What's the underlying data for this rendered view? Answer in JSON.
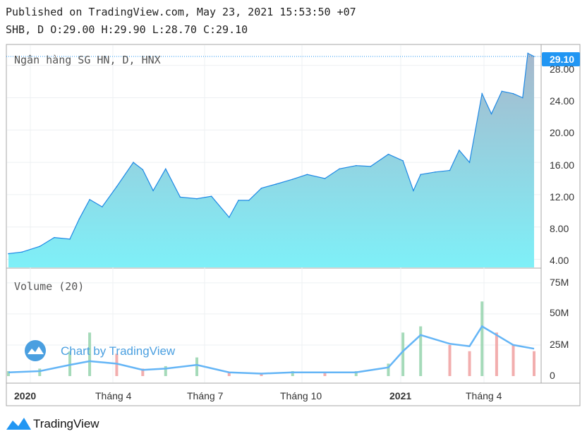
{
  "header": {
    "published": "Published on TradingView.com, May 23, 2021 15:53:50 +07",
    "ohlc": "SHB, D O:29.00 H:29.90 L:28.70 C:29.10"
  },
  "price_pane": {
    "label": "Ngân hàng SG HN, D, HNX",
    "last_price_label": "29.10",
    "y_ticks": [
      "28.00",
      "24.00",
      "20.00",
      "16.00",
      "12.00",
      "8.00",
      "4.00"
    ]
  },
  "volume_pane": {
    "label": "Volume (20)",
    "y_ticks": [
      "75M",
      "50M",
      "25M",
      "0"
    ]
  },
  "x_axis": {
    "ticks": [
      {
        "label": "2020",
        "bold": true
      },
      {
        "label": "Tháng 4",
        "bold": false
      },
      {
        "label": "Tháng 7",
        "bold": false
      },
      {
        "label": "Tháng 10",
        "bold": false
      },
      {
        "label": "2021",
        "bold": true
      },
      {
        "label": "Tháng 4",
        "bold": false
      }
    ]
  },
  "watermark": "Chart by TradingView",
  "footer_brand": "TradingView",
  "colors": {
    "area_top": "#a7b8cc",
    "area_bottom": "#7ef0f8",
    "line": "#1e88e5",
    "price_label_bg": "#2196f3",
    "vol_up": "#8fd1a8",
    "vol_down": "#ef9a9a",
    "vol_ma": "#64b5f6",
    "grid": "#eef0f3",
    "border": "#a7a7a7"
  },
  "chart_data": [
    {
      "type": "area",
      "title": "Ngân hàng SG HN, D, HNX",
      "x": [
        "2020-01-02",
        "2020-01-15",
        "2020-02-01",
        "2020-02-15",
        "2020-03-01",
        "2020-03-10",
        "2020-03-20",
        "2020-04-01",
        "2020-04-15",
        "2020-05-01",
        "2020-05-10",
        "2020-05-20",
        "2020-06-01",
        "2020-06-15",
        "2020-07-01",
        "2020-07-15",
        "2020-08-01",
        "2020-08-10",
        "2020-08-20",
        "2020-09-01",
        "2020-09-15",
        "2020-10-01",
        "2020-10-15",
        "2020-11-01",
        "2020-11-15",
        "2020-12-01",
        "2020-12-15",
        "2021-01-01",
        "2021-01-15",
        "2021-01-25",
        "2021-02-01",
        "2021-02-15",
        "2021-03-01",
        "2021-03-10",
        "2021-03-20",
        "2021-04-01",
        "2021-04-10",
        "2021-04-20",
        "2021-05-01",
        "2021-05-10",
        "2021-05-15",
        "2021-05-21"
      ],
      "values": [
        4.7,
        4.9,
        5.6,
        6.7,
        6.5,
        9.0,
        11.4,
        10.5,
        13.0,
        16.0,
        15.1,
        12.5,
        15.2,
        11.7,
        11.5,
        11.8,
        9.2,
        11.3,
        11.3,
        12.8,
        13.3,
        13.9,
        14.5,
        14.0,
        15.2,
        15.6,
        15.5,
        17.0,
        16.2,
        12.5,
        14.5,
        14.8,
        15.0,
        17.5,
        16.0,
        24.5,
        22.0,
        24.8,
        24.5,
        24.0,
        29.5,
        29.1
      ],
      "series": [
        {
          "name": "SHB",
          "values": [
            4.7,
            4.9,
            5.6,
            6.7,
            6.5,
            9.0,
            11.4,
            10.5,
            13.0,
            16.0,
            15.1,
            12.5,
            15.2,
            11.7,
            11.5,
            11.8,
            9.2,
            11.3,
            11.3,
            12.8,
            13.3,
            13.9,
            14.5,
            14.0,
            15.2,
            15.6,
            15.5,
            17.0,
            16.2,
            12.5,
            14.5,
            14.8,
            15.0,
            17.5,
            16.0,
            24.5,
            22.0,
            24.8,
            24.5,
            24.0,
            29.5,
            29.1
          ]
        }
      ],
      "ylim": [
        3.0,
        30.5
      ]
    },
    {
      "type": "bar",
      "title": "Volume (20)",
      "x": [
        "2020-01-02",
        "2020-02-01",
        "2020-03-01",
        "2020-03-20",
        "2020-04-15",
        "2020-05-10",
        "2020-06-01",
        "2020-07-01",
        "2020-08-01",
        "2020-09-01",
        "2020-10-01",
        "2020-11-01",
        "2020-12-01",
        "2021-01-01",
        "2021-01-15",
        "2021-02-01",
        "2021-03-01",
        "2021-03-20",
        "2021-04-01",
        "2021-04-15",
        "2021-05-01",
        "2021-05-21"
      ],
      "values": [
        4,
        6,
        20,
        35,
        18,
        6,
        8,
        15,
        3,
        2,
        4,
        3,
        4,
        10,
        35,
        40,
        25,
        20,
        60,
        35,
        25,
        20
      ],
      "series": [
        {
          "name": "MA 20",
          "values": [
            3,
            4,
            9,
            12,
            10,
            5,
            6,
            9,
            3,
            2,
            3,
            3,
            3,
            7,
            20,
            33,
            26,
            24,
            40,
            33,
            25,
            22
          ]
        }
      ],
      "ylim": [
        0,
        80
      ]
    }
  ]
}
